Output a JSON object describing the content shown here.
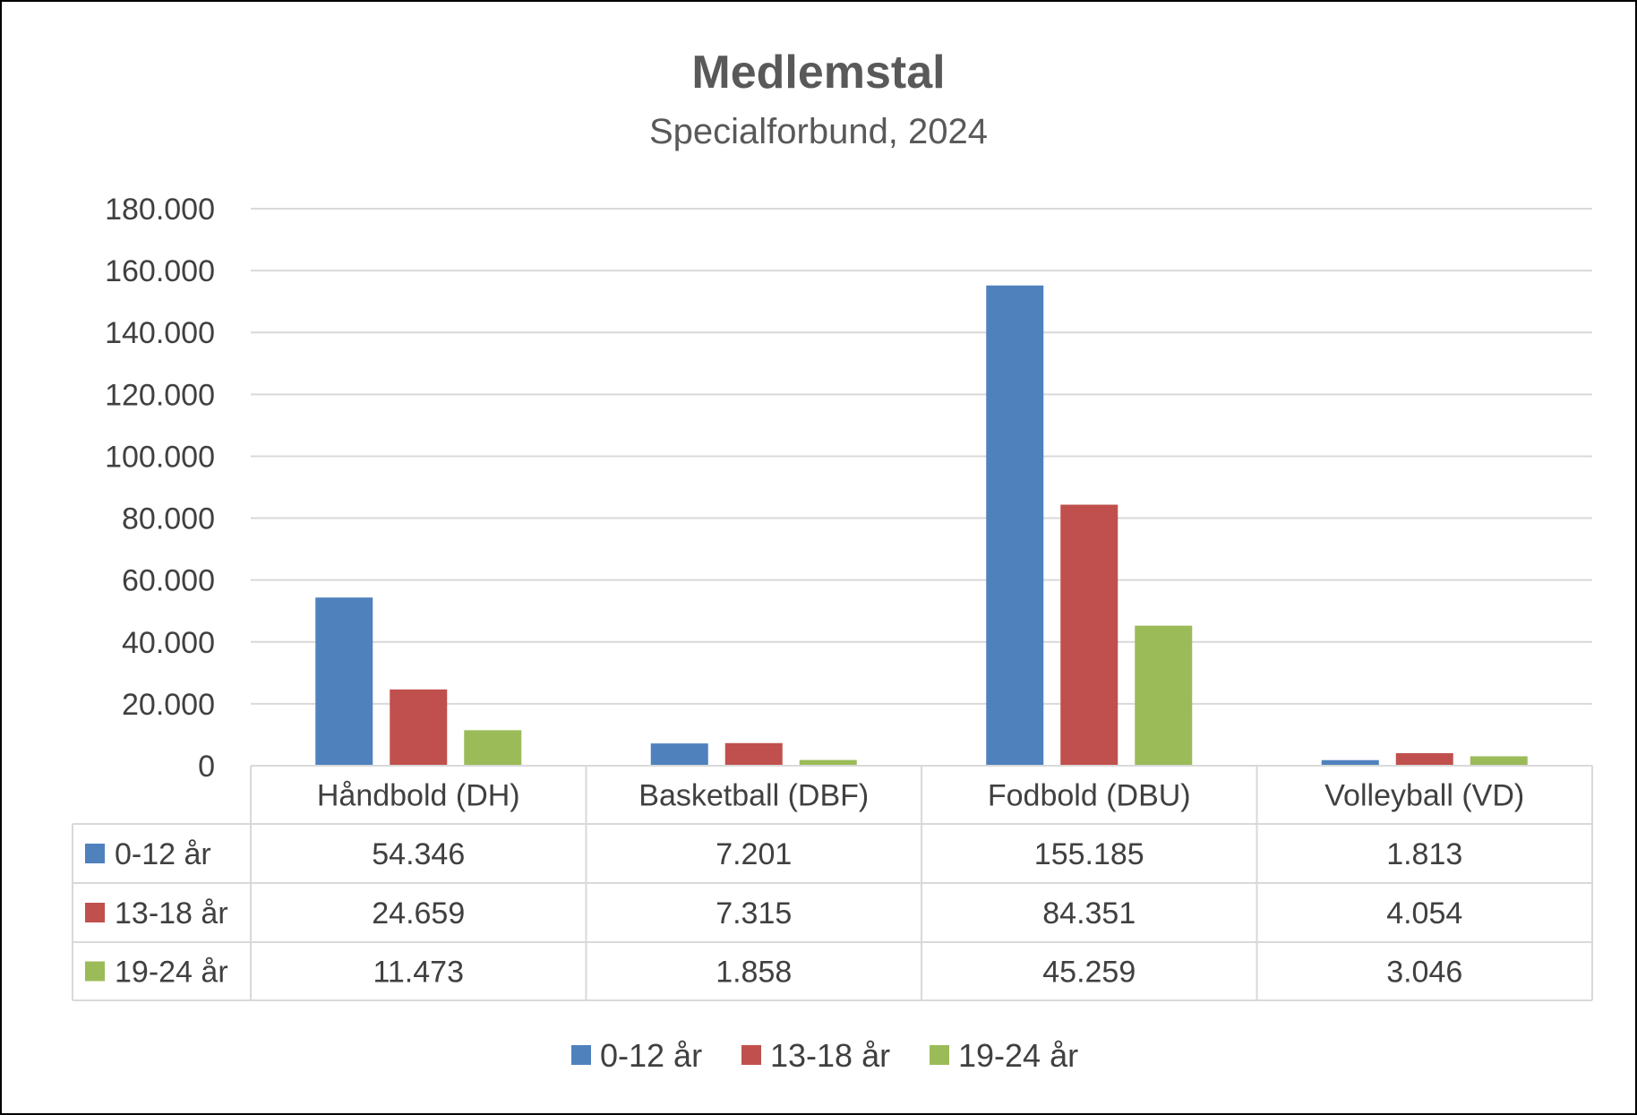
{
  "chart_data": {
    "type": "bar",
    "title": "Medlemstal",
    "subtitle": "Specialforbund, 2024",
    "categories": [
      "Håndbold (DH)",
      "Basketball (DBF)",
      "Fodbold (DBU)",
      "Volleyball (VD)"
    ],
    "series": [
      {
        "name": "0-12 år",
        "color": "#4f81bd",
        "values": [
          54346,
          7201,
          155185,
          1813
        ],
        "labels": [
          "54.346",
          "7.201",
          "155.185",
          "1.813"
        ]
      },
      {
        "name": "13-18 år",
        "color": "#c0504d",
        "values": [
          24659,
          7315,
          84351,
          4054
        ],
        "labels": [
          "24.659",
          "7.315",
          "84.351",
          "4.054"
        ]
      },
      {
        "name": "19-24 år",
        "color": "#9bbb59",
        "values": [
          11473,
          1858,
          45259,
          3046
        ],
        "labels": [
          "11.473",
          "1.858",
          "45.259",
          "3.046"
        ]
      }
    ],
    "ylim": [
      0,
      180000
    ],
    "yticks": [
      {
        "value": 0,
        "label": "0"
      },
      {
        "value": 20000,
        "label": "20.000"
      },
      {
        "value": 40000,
        "label": "40.000"
      },
      {
        "value": 60000,
        "label": "60.000"
      },
      {
        "value": 80000,
        "label": "80.000"
      },
      {
        "value": 100000,
        "label": "100.000"
      },
      {
        "value": 120000,
        "label": "120.000"
      },
      {
        "value": 140000,
        "label": "140.000"
      },
      {
        "value": 160000,
        "label": "160.000"
      },
      {
        "value": 180000,
        "label": "180.000"
      }
    ],
    "xlabel": "",
    "ylabel": "",
    "grid": true,
    "legend": "bottom",
    "data_table": true
  }
}
